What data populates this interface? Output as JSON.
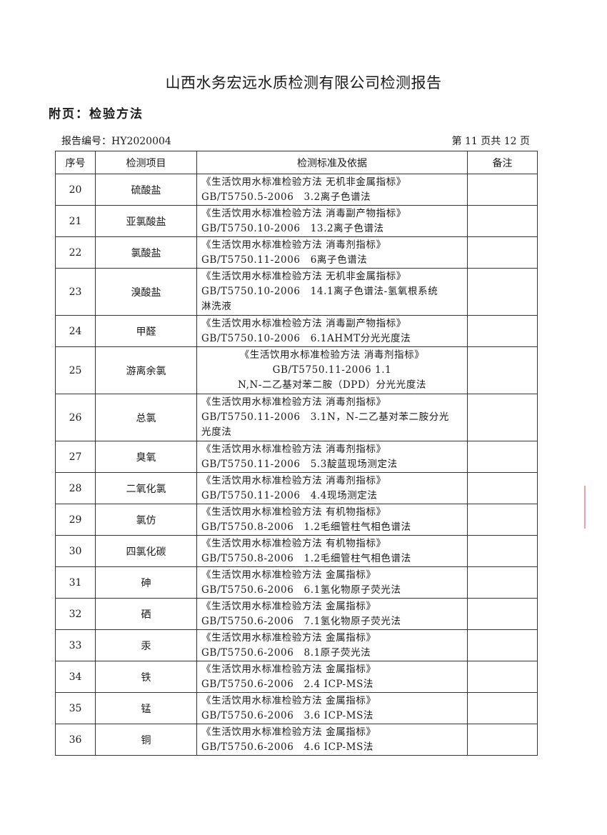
{
  "header": {
    "title": "山西水务宏远水质检测有限公司检测报告",
    "subtitle": "附页：检验方法",
    "report_no": "报告编号：HY2020004",
    "page": "第 11 页共 12 页"
  },
  "table": {
    "columns": [
      "序号",
      "检测项目",
      "检测标准及依据",
      "备注"
    ],
    "rows": [
      {
        "no": "20",
        "item": "硫酸盐",
        "method": [
          "《生活饮用水标准检验方法 无机非金属指标》",
          "GB/T5750.5-2006　3.2离子色谱法"
        ],
        "note": ""
      },
      {
        "no": "21",
        "item": "亚氯酸盐",
        "method": [
          "《生活饮用水标准检验方法 消毒副产物指标》",
          "GB/T5750.10-2006　13.2离子色谱法"
        ],
        "note": ""
      },
      {
        "no": "22",
        "item": "氯酸盐",
        "method": [
          "《生活饮用水标准检验方法 消毒剂指标》",
          "GB/T5750.11-2006　6离子色谱法"
        ],
        "note": ""
      },
      {
        "no": "23",
        "item": "溴酸盐",
        "method": [
          "《生活饮用水标准检验方法 无机非金属指标》",
          "GB/T5750.10-2006　14.1离子色谱法-氢氧根系统",
          "淋洗液"
        ],
        "note": ""
      },
      {
        "no": "24",
        "item": "甲醛",
        "method": [
          "《生活饮用水标准检验方法 消毒副产物指标》",
          "GB/T5750.10-2006　6.1AHMT分光光度法"
        ],
        "note": ""
      },
      {
        "no": "25",
        "item": "游离余氯",
        "method": [
          "《生活饮用水标准检验方法 消毒剂指标》",
          "GB/T5750.11-2006 1.1",
          "N,N-二乙基对苯二胺（DPD）分光光度法"
        ],
        "note": "",
        "centered": true
      },
      {
        "no": "26",
        "item": "总氯",
        "method": [
          "《生活饮用水标准检验方法 消毒剂指标》",
          "GB/T5750.11-2006　3.1N，N-二乙基对苯二胺分光",
          "光度法"
        ],
        "note": ""
      },
      {
        "no": "27",
        "item": "臭氧",
        "method": [
          "《生活饮用水标准检验方法 消毒剂指标》",
          "GB/T5750.11-2006　5.3靛蓝现场测定法"
        ],
        "note": ""
      },
      {
        "no": "28",
        "item": "二氧化氯",
        "method": [
          "《生活饮用水标准检验方法 消毒剂指标》",
          "GB/T5750.11-2006　4.4现场测定法"
        ],
        "note": ""
      },
      {
        "no": "29",
        "item": "氯仿",
        "method": [
          "《生活饮用水标准检验方法 有机物指标》",
          "GB/T5750.8-2006　1.2毛细管柱气相色谱法"
        ],
        "note": ""
      },
      {
        "no": "30",
        "item": "四氯化碳",
        "method": [
          "《生活饮用水标准检验方法 有机物指标》",
          "GB/T5750.8-2006　1.2毛细管柱气相色谱法"
        ],
        "note": ""
      },
      {
        "no": "31",
        "item": "砷",
        "method": [
          "《生活饮用水标准检验方法 金属指标》",
          "GB/T5750.6-2006　6.1氢化物原子荧光法"
        ],
        "note": ""
      },
      {
        "no": "32",
        "item": "硒",
        "method": [
          "《生活饮用水标准检验方法 金属指标》",
          "GB/T5750.6-2006　7.1氢化物原子荧光法"
        ],
        "note": ""
      },
      {
        "no": "33",
        "item": "汞",
        "method": [
          "《生活饮用水标准检验方法 金属指标》",
          "GB/T5750.6-2006　8.1原子荧光法"
        ],
        "note": ""
      },
      {
        "no": "34",
        "item": "铁",
        "method": [
          "《生活饮用水标准检验方法 金属指标》",
          "GB/T5750.6-2006　2.4 ICP-MS法"
        ],
        "note": ""
      },
      {
        "no": "35",
        "item": "锰",
        "method": [
          "《生活饮用水标准检验方法 金属指标》",
          "GB/T5750.6-2006　3.6 ICP-MS法"
        ],
        "note": ""
      },
      {
        "no": "36",
        "item": "铜",
        "method": [
          "《生活饮用水标准检验方法 金属指标》",
          "GB/T5750.6-2006　4.6 ICP-MS法"
        ],
        "note": ""
      }
    ]
  }
}
